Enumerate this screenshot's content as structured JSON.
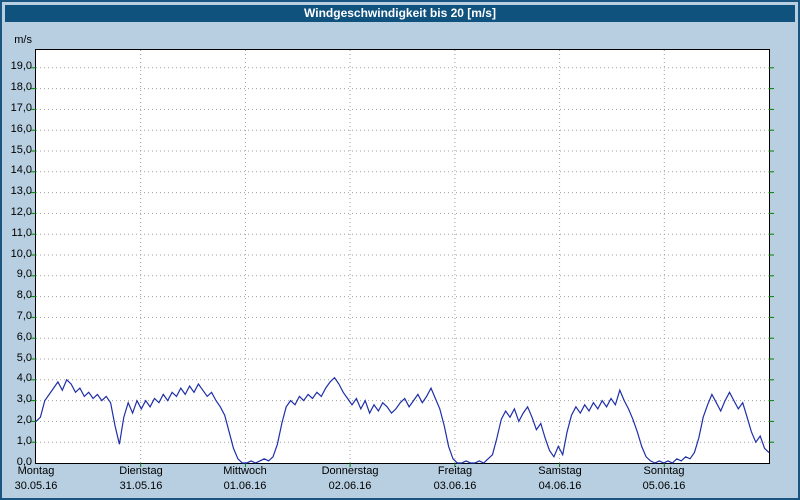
{
  "title": "Windgeschwindigkeit bis 20 [m/s]",
  "colors": {
    "title_bar": "#0f527e",
    "background": "#b7cfe1",
    "frame_border": "#1a5480",
    "plot_background": "#ffffff",
    "grid": "#a0a0a0",
    "tick": "#008000",
    "trace": "#1e2fa8"
  },
  "chart_data": {
    "type": "line",
    "title": "Windgeschwindigkeit bis 20 [m/s]",
    "ylabel": "m/s",
    "ylim": [
      0,
      20
    ],
    "grid": "dotted",
    "legend_position": "none",
    "y_tick_labels": [
      "0,0",
      "1,0",
      "2,0",
      "3,0",
      "4,0",
      "5,0",
      "6,0",
      "7,0",
      "8,0",
      "9,0",
      "10,0",
      "11,0",
      "12,0",
      "13,0",
      "14,0",
      "15,0",
      "16,0",
      "17,0",
      "18,0",
      "19,0"
    ],
    "x_axis_days": [
      {
        "name": "Montag",
        "date": "30.05.16"
      },
      {
        "name": "Dienstag",
        "date": "31.05.16"
      },
      {
        "name": "Mittwoch",
        "date": "01.06.16"
      },
      {
        "name": "Donnerstag",
        "date": "02.06.16"
      },
      {
        "name": "Freitag",
        "date": "03.06.16"
      },
      {
        "name": "Samstag",
        "date": "04.06.16"
      },
      {
        "name": "Sonntag",
        "date": "05.06.16"
      }
    ],
    "sampling": "hourly",
    "values": [
      2.0,
      2.2,
      3.0,
      3.3,
      3.6,
      3.9,
      3.5,
      4.0,
      3.8,
      3.4,
      3.6,
      3.2,
      3.4,
      3.1,
      3.3,
      3.0,
      3.2,
      2.9,
      1.8,
      0.9,
      2.2,
      2.9,
      2.4,
      3.0,
      2.6,
      3.0,
      2.7,
      3.1,
      2.9,
      3.3,
      3.0,
      3.4,
      3.2,
      3.6,
      3.3,
      3.7,
      3.4,
      3.8,
      3.5,
      3.2,
      3.4,
      3.0,
      2.7,
      2.3,
      1.5,
      0.7,
      0.2,
      0.0,
      0.0,
      0.1,
      0.0,
      0.1,
      0.2,
      0.1,
      0.3,
      0.9,
      1.9,
      2.7,
      3.0,
      2.8,
      3.2,
      3.0,
      3.3,
      3.1,
      3.4,
      3.2,
      3.6,
      3.9,
      4.1,
      3.8,
      3.4,
      3.1,
      2.8,
      3.1,
      2.6,
      3.0,
      2.4,
      2.8,
      2.5,
      2.9,
      2.7,
      2.4,
      2.6,
      2.9,
      3.1,
      2.7,
      3.0,
      3.3,
      2.9,
      3.2,
      3.6,
      3.1,
      2.6,
      1.8,
      0.8,
      0.2,
      0.0,
      0.0,
      0.1,
      0.0,
      0.0,
      0.1,
      0.0,
      0.2,
      0.4,
      1.2,
      2.1,
      2.5,
      2.2,
      2.6,
      2.0,
      2.4,
      2.7,
      2.2,
      1.6,
      1.9,
      1.2,
      0.6,
      0.3,
      0.8,
      0.4,
      1.5,
      2.3,
      2.7,
      2.4,
      2.8,
      2.5,
      2.9,
      2.6,
      3.0,
      2.7,
      3.1,
      2.8,
      3.5,
      3.0,
      2.6,
      2.1,
      1.5,
      0.8,
      0.3,
      0.1,
      0.0,
      0.1,
      0.0,
      0.1,
      0.0,
      0.2,
      0.1,
      0.3,
      0.2,
      0.5,
      1.2,
      2.2,
      2.8,
      3.3,
      2.9,
      2.5,
      3.0,
      3.4,
      3.0,
      2.6,
      2.9,
      2.2,
      1.5,
      1.0,
      1.3,
      0.7,
      0.5
    ]
  }
}
